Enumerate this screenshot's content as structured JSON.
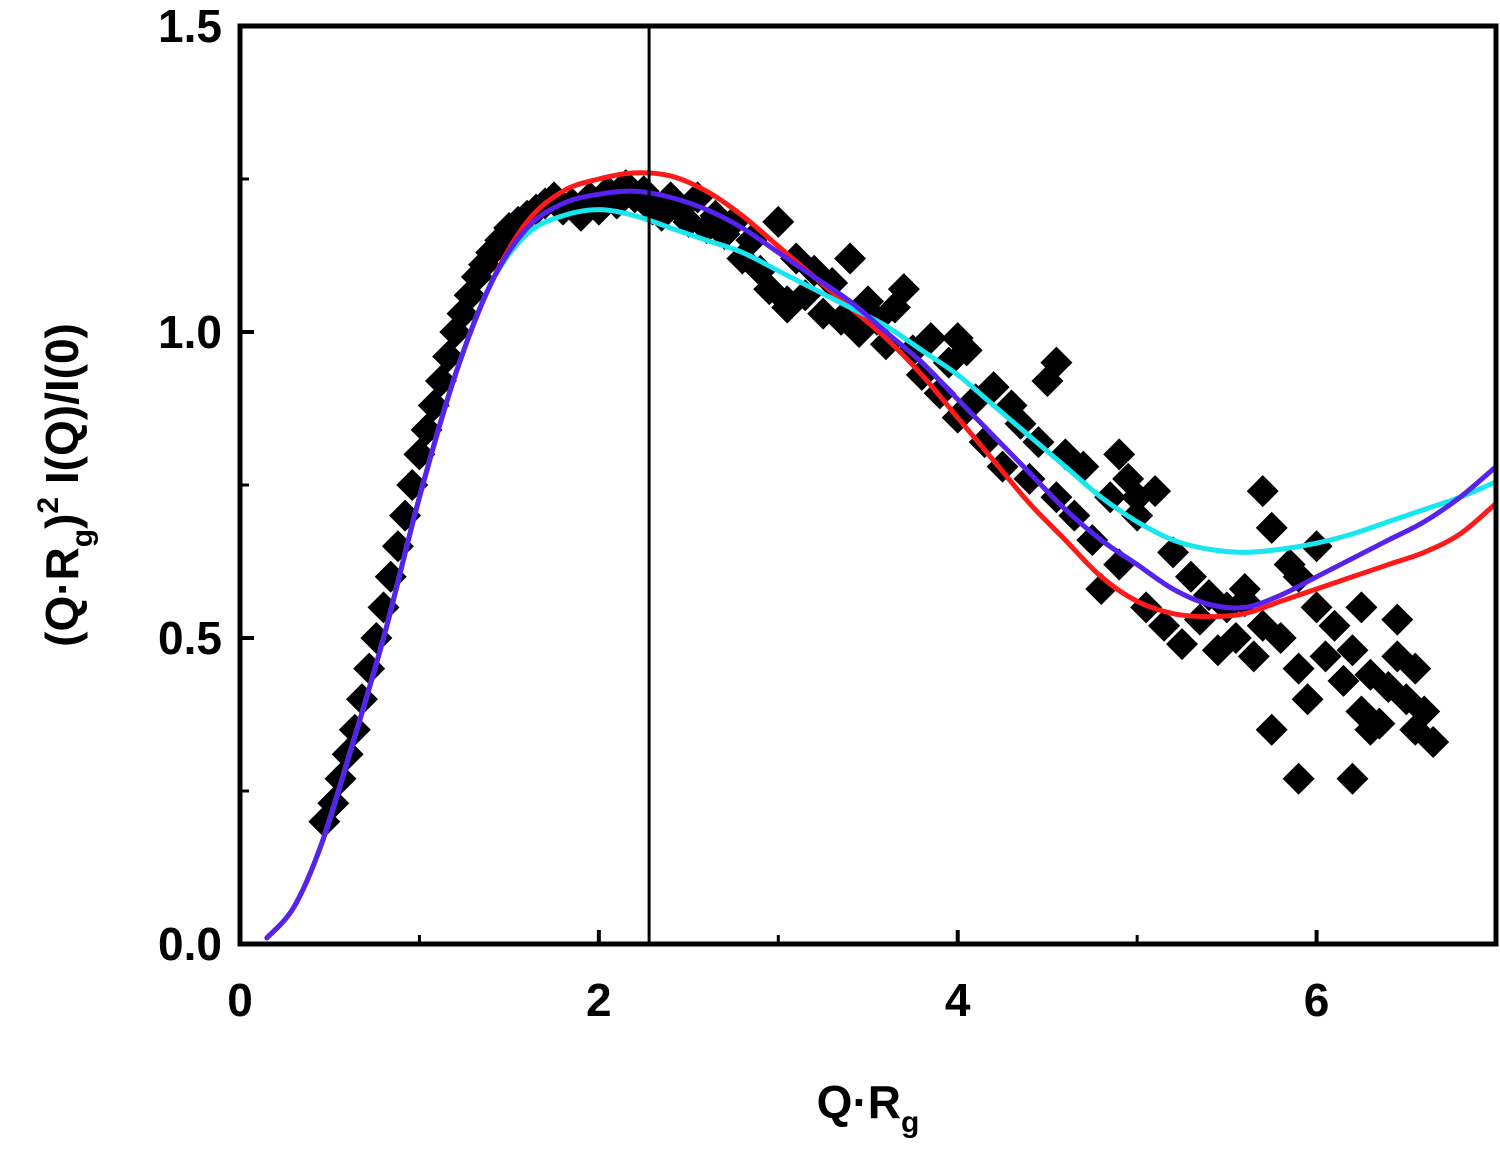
{
  "chart_data": {
    "type": "scatter",
    "title": "",
    "xlabel": {
      "main": "Q·R",
      "sub": "g"
    },
    "ylabel": {
      "pre": "(Q·R",
      "sub": "g",
      "mid": ")",
      "sup": "2",
      "post": " I(Q)/I(0)"
    },
    "xlim": [
      0,
      7
    ],
    "ylim": [
      0,
      1.5
    ],
    "x_ticks": [
      0,
      2,
      4,
      6
    ],
    "x_tick_labels": [
      "0",
      "2",
      "4",
      "6"
    ],
    "x_minor_ticks": [
      1,
      3,
      5
    ],
    "y_ticks": [
      0.0,
      0.5,
      1.0,
      1.5
    ],
    "y_tick_labels": [
      "0.0",
      "0.5",
      "1.0",
      "1.5"
    ],
    "y_minor_ticks": [
      0.25,
      0.75,
      1.25
    ],
    "grid": false,
    "vertical_line_x": 2.28,
    "colors": {
      "data": "#000000",
      "fit_red": "#ff1a1a",
      "fit_blue": "#5522ee",
      "fit_cyan": "#19e6ee",
      "vline": "#000000"
    },
    "data_points": {
      "x": [
        0.47,
        0.52,
        0.56,
        0.6,
        0.64,
        0.68,
        0.72,
        0.76,
        0.8,
        0.84,
        0.88,
        0.92,
        0.96,
        1.0,
        1.04,
        1.08,
        1.12,
        1.16,
        1.2,
        1.24,
        1.28,
        1.32,
        1.36,
        1.4,
        1.45,
        1.5,
        1.55,
        1.6,
        1.65,
        1.7,
        1.75,
        1.8,
        1.85,
        1.9,
        1.95,
        2.0,
        2.05,
        2.1,
        2.15,
        2.2,
        2.25,
        2.3,
        2.35,
        2.4,
        2.45,
        2.5,
        2.55,
        2.6,
        2.65,
        2.7,
        2.75,
        2.8,
        2.85,
        2.9,
        2.95,
        3.0,
        3.05,
        3.1,
        3.15,
        3.2,
        3.25,
        3.3,
        3.35,
        3.4,
        3.45,
        3.5,
        3.55,
        3.6,
        3.65,
        3.7,
        3.75,
        3.8,
        3.85,
        3.9,
        3.95,
        4.0,
        4.05,
        4.1,
        4.15,
        4.2,
        4.25,
        4.3,
        4.35,
        4.4,
        4.45,
        4.5,
        4.55,
        4.6,
        4.65,
        4.7,
        4.75,
        4.8,
        4.85,
        4.9,
        4.95,
        5.0,
        5.05,
        5.1,
        5.15,
        5.2,
        5.25,
        5.3,
        5.35,
        5.4,
        5.45,
        5.5,
        5.55,
        5.6,
        5.65,
        5.7,
        5.75,
        5.8,
        5.85,
        5.9,
        5.95,
        6.0,
        6.05,
        6.1,
        6.15,
        6.2,
        6.25,
        6.3,
        6.35,
        6.4,
        6.45,
        6.5,
        6.55,
        6.6,
        6.65,
        2.95,
        3.05,
        3.4,
        3.9,
        4.0,
        4.55,
        4.9,
        5.0,
        5.6,
        5.7,
        5.9,
        6.0,
        6.25,
        6.45,
        6.55,
        5.9,
        6.2,
        5.75,
        6.3
      ],
      "y": [
        0.2,
        0.23,
        0.27,
        0.31,
        0.35,
        0.4,
        0.45,
        0.5,
        0.55,
        0.6,
        0.65,
        0.7,
        0.75,
        0.8,
        0.84,
        0.88,
        0.92,
        0.96,
        1.0,
        1.03,
        1.06,
        1.09,
        1.11,
        1.13,
        1.15,
        1.17,
        1.18,
        1.19,
        1.2,
        1.21,
        1.22,
        1.2,
        1.21,
        1.19,
        1.22,
        1.2,
        1.23,
        1.21,
        1.24,
        1.22,
        1.23,
        1.2,
        1.19,
        1.22,
        1.2,
        1.18,
        1.22,
        1.17,
        1.19,
        1.16,
        1.18,
        1.12,
        1.15,
        1.1,
        1.07,
        1.18,
        1.04,
        1.12,
        1.06,
        1.1,
        1.03,
        1.08,
        1.02,
        1.12,
        1.0,
        1.05,
        1.02,
        0.98,
        1.04,
        1.07,
        0.97,
        0.93,
        0.99,
        0.9,
        0.95,
        0.86,
        0.97,
        0.89,
        0.82,
        0.91,
        0.78,
        0.88,
        0.85,
        0.76,
        0.82,
        0.92,
        0.73,
        0.8,
        0.7,
        0.78,
        0.66,
        0.58,
        0.73,
        0.62,
        0.76,
        0.7,
        0.55,
        0.74,
        0.52,
        0.64,
        0.49,
        0.6,
        0.53,
        0.57,
        0.48,
        0.55,
        0.5,
        0.58,
        0.47,
        0.52,
        0.68,
        0.5,
        0.62,
        0.45,
        0.4,
        0.55,
        0.47,
        0.52,
        0.43,
        0.48,
        0.38,
        0.44,
        0.36,
        0.42,
        0.47,
        0.4,
        0.35,
        0.38,
        0.33,
        1.07,
        1.05,
        1.02,
        0.9,
        0.99,
        0.95,
        0.8,
        0.73,
        0.56,
        0.74,
        0.6,
        0.65,
        0.55,
        0.53,
        0.45,
        0.27,
        0.27,
        0.35,
        0.35
      ]
    },
    "series": [
      {
        "color": "red",
        "x": [
          0.15,
          0.3,
          0.45,
          0.6,
          0.8,
          1.0,
          1.2,
          1.4,
          1.6,
          1.8,
          2.0,
          2.2,
          2.4,
          2.6,
          2.8,
          3.0,
          3.2,
          3.4,
          3.6,
          3.8,
          4.0,
          4.2,
          4.4,
          4.6,
          4.8,
          5.0,
          5.2,
          5.4,
          5.6,
          5.8,
          6.0,
          6.2,
          6.4,
          6.6,
          6.8,
          7.0
        ],
        "y": [
          0.01,
          0.06,
          0.16,
          0.3,
          0.5,
          0.73,
          0.93,
          1.08,
          1.18,
          1.23,
          1.25,
          1.26,
          1.255,
          1.23,
          1.19,
          1.14,
          1.09,
          1.04,
          0.99,
          0.93,
          0.86,
          0.79,
          0.72,
          0.66,
          0.6,
          0.56,
          0.54,
          0.535,
          0.54,
          0.56,
          0.58,
          0.6,
          0.62,
          0.64,
          0.67,
          0.72
        ]
      },
      {
        "color": "blue",
        "x": [
          0.15,
          0.3,
          0.45,
          0.6,
          0.8,
          1.0,
          1.2,
          1.4,
          1.6,
          1.8,
          2.0,
          2.2,
          2.4,
          2.6,
          2.8,
          3.0,
          3.2,
          3.4,
          3.6,
          3.8,
          4.0,
          4.2,
          4.4,
          4.6,
          4.8,
          5.0,
          5.2,
          5.4,
          5.6,
          5.8,
          6.0,
          6.2,
          6.4,
          6.6,
          6.8,
          7.0
        ],
        "y": [
          0.01,
          0.06,
          0.16,
          0.3,
          0.5,
          0.73,
          0.93,
          1.08,
          1.17,
          1.21,
          1.225,
          1.23,
          1.22,
          1.2,
          1.17,
          1.13,
          1.09,
          1.05,
          1.0,
          0.95,
          0.89,
          0.83,
          0.77,
          0.71,
          0.66,
          0.62,
          0.58,
          0.555,
          0.55,
          0.57,
          0.6,
          0.63,
          0.66,
          0.69,
          0.73,
          0.78
        ]
      },
      {
        "color": "cyan",
        "x": [
          0.15,
          0.3,
          0.45,
          0.6,
          0.8,
          1.0,
          1.2,
          1.4,
          1.6,
          1.8,
          2.0,
          2.2,
          2.4,
          2.6,
          2.8,
          3.0,
          3.2,
          3.4,
          3.6,
          3.8,
          4.0,
          4.2,
          4.4,
          4.6,
          4.8,
          5.0,
          5.2,
          5.4,
          5.6,
          5.8,
          6.0,
          6.2,
          6.4,
          6.6,
          6.8,
          7.0
        ],
        "y": [
          0.01,
          0.06,
          0.16,
          0.3,
          0.5,
          0.73,
          0.93,
          1.08,
          1.16,
          1.19,
          1.2,
          1.19,
          1.17,
          1.15,
          1.13,
          1.1,
          1.07,
          1.04,
          1.01,
          0.97,
          0.93,
          0.88,
          0.83,
          0.78,
          0.73,
          0.69,
          0.66,
          0.645,
          0.64,
          0.645,
          0.655,
          0.67,
          0.69,
          0.71,
          0.73,
          0.755
        ]
      }
    ]
  }
}
